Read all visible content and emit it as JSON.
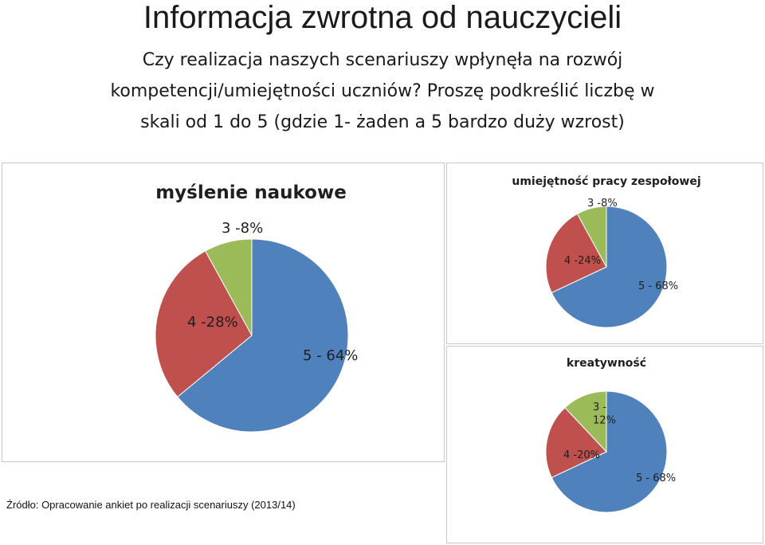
{
  "header": {
    "title": "Informacja zwrotna od nauczycieli",
    "question_line1": "Czy realizacja naszych scenariuszy wpłynęła na rozwój",
    "question_line2": "kompetencji/umiejętności uczniów? Proszę podkreślić liczbę w",
    "question_line3": "skali od 1 do 5 (gdzie 1- żaden a 5 bardzo duży wzrost)"
  },
  "footer": {
    "source": "Źródło: Opracowanie ankiet po realizacji scenariuszy (2013/14)"
  },
  "colors": {
    "blue": "#4f81bd",
    "red": "#c0504d",
    "green": "#9bbb59"
  },
  "chart_data": [
    {
      "type": "pie",
      "title": "myślenie naukowe",
      "slices": [
        {
          "label": "5 - 64%",
          "value": 64,
          "color": "#4f81bd"
        },
        {
          "label": "4 -28%",
          "value": 28,
          "color": "#c0504d"
        },
        {
          "label": "3 -8%",
          "value": 8,
          "color": "#9bbb59"
        }
      ]
    },
    {
      "type": "pie",
      "title": "umiejętność pracy zespołowej",
      "slices": [
        {
          "label": "5 - 68%",
          "value": 68,
          "color": "#4f81bd"
        },
        {
          "label": "4 -24%",
          "value": 24,
          "color": "#c0504d"
        },
        {
          "label": "3 -8%",
          "value": 8,
          "color": "#9bbb59"
        }
      ]
    },
    {
      "type": "pie",
      "title": "kreatywność",
      "slices": [
        {
          "label": "5 - 68%",
          "value": 68,
          "color": "#4f81bd"
        },
        {
          "label": "4 -20%",
          "value": 20,
          "color": "#c0504d"
        },
        {
          "label": "3 -\n12%",
          "value": 12,
          "color": "#9bbb59"
        }
      ]
    }
  ]
}
